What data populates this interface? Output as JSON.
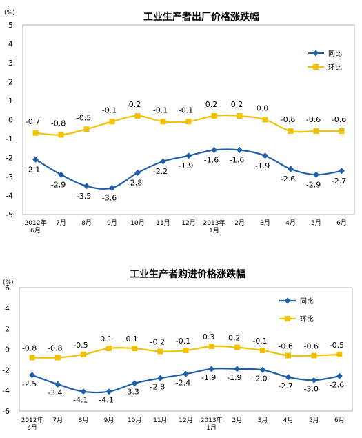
{
  "charts": [
    {
      "type": "line",
      "title": "工业生产者出厂价格涨跌幅",
      "unit_label": "(%)",
      "categories": [
        [
          "2012年",
          "6月"
        ],
        [
          "7月"
        ],
        [
          "8月"
        ],
        [
          "9月"
        ],
        [
          "10月"
        ],
        [
          "11月"
        ],
        [
          "12月"
        ],
        [
          "2013年",
          "1月"
        ],
        [
          "2月"
        ],
        [
          "3月"
        ],
        [
          "4月"
        ],
        [
          "5月"
        ],
        [
          "6月"
        ]
      ],
      "ylim": [
        -5,
        5
      ],
      "yticks": [
        "5",
        "4",
        "3",
        "2",
        "1",
        "0",
        "-1",
        "-2",
        "-3",
        "-4",
        "-5"
      ],
      "legend_position": "top-right",
      "series": [
        {
          "name": "同比",
          "color": "#1f5fa8",
          "marker": "diamond",
          "values": [
            -2.1,
            -2.9,
            -3.5,
            -3.6,
            -2.8,
            -2.2,
            -1.9,
            -1.6,
            -1.6,
            -1.9,
            -2.6,
            -2.9,
            -2.7
          ],
          "labels": [
            "-2.1",
            "-2.9",
            "-3.5",
            "-3.6",
            "-2.8",
            "-2.2",
            "-1.9",
            "-1.6",
            "-1.6",
            "-1.9",
            "-2.6",
            "-2.9",
            "-2.7"
          ]
        },
        {
          "name": "环比",
          "color": "#f2c200",
          "marker": "square",
          "values": [
            -0.7,
            -0.8,
            -0.5,
            -0.1,
            0.2,
            -0.1,
            -0.1,
            0.2,
            0.2,
            0.0,
            -0.6,
            -0.6,
            -0.6
          ],
          "labels": [
            "-0.7",
            "-0.8",
            "-0.5",
            "-0.1",
            "0.2",
            "-0.1",
            "-0.1",
            "0.2",
            "0.2",
            "0.0",
            "-0.6",
            "-0.6",
            "-0.6"
          ]
        }
      ]
    },
    {
      "type": "line",
      "title": "工业生产者购进价格涨跌幅",
      "unit_label": "(%)",
      "categories": [
        [
          "2012年",
          "6月"
        ],
        [
          "7月"
        ],
        [
          "8月"
        ],
        [
          "9月"
        ],
        [
          "10月"
        ],
        [
          "11月"
        ],
        [
          "12月"
        ],
        [
          "2013年",
          "1月"
        ],
        [
          "2月"
        ],
        [
          "3月"
        ],
        [
          "4月"
        ],
        [
          "5月"
        ],
        [
          "6月"
        ]
      ],
      "ylim": [
        -6,
        6
      ],
      "yticks": [
        "6",
        "4",
        "2",
        "0",
        "-2",
        "-4",
        "-6"
      ],
      "legend_position": "top-right",
      "series": [
        {
          "name": "同比",
          "color": "#1f5fa8",
          "marker": "diamond",
          "values": [
            -2.5,
            -3.4,
            -4.1,
            -4.1,
            -3.3,
            -2.8,
            -2.4,
            -1.9,
            -1.9,
            -2.0,
            -2.7,
            -3.0,
            -2.6
          ],
          "labels": [
            "-2.5",
            "-3.4",
            "-4.1",
            "-4.1",
            "-3.3",
            "-2.8",
            "-2.4",
            "-1.9",
            "-1.9",
            "-2.0",
            "-2.7",
            "-3.0",
            "-2.6"
          ]
        },
        {
          "name": "环比",
          "color": "#f2c200",
          "marker": "square",
          "values": [
            -0.8,
            -0.8,
            -0.5,
            0.1,
            0.1,
            -0.2,
            -0.1,
            0.3,
            0.2,
            -0.1,
            -0.6,
            -0.6,
            -0.5
          ],
          "labels": [
            "-0.8",
            "-0.8",
            "-0.5",
            "0.1",
            "0.1",
            "-0.2",
            "-0.1",
            "0.3",
            "0.2",
            "-0.1",
            "-0.6",
            "-0.6",
            "-0.5"
          ]
        }
      ]
    }
  ]
}
